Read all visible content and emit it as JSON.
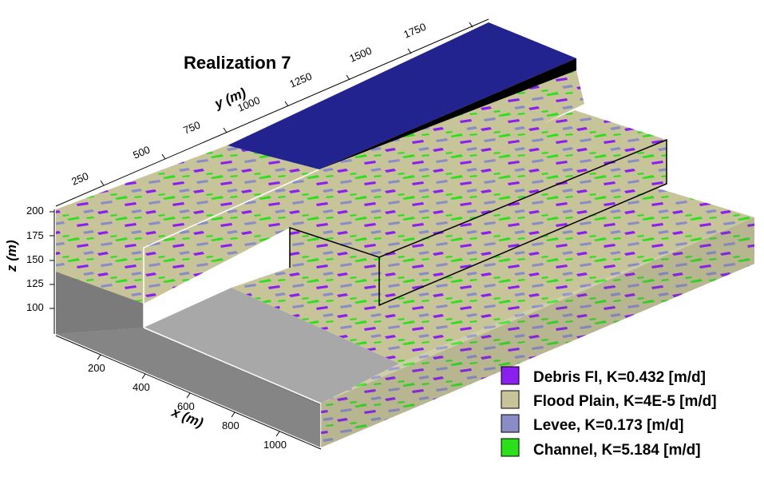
{
  "title": "Realization 7",
  "axes": {
    "x": {
      "label": "x (m)",
      "ticks": [
        "200",
        "400",
        "600",
        "800",
        "1000"
      ]
    },
    "y": {
      "label": "y (m)",
      "ticks": [
        "250",
        "500",
        "750",
        "1000",
        "1250",
        "1500",
        "1750"
      ]
    },
    "z": {
      "label": "z (m)",
      "ticks": [
        "200",
        "175",
        "150",
        "125",
        "100"
      ]
    }
  },
  "legend": [
    {
      "label": "Debris Fl, K=0.432 [m/d]",
      "color": "#8b1ff0"
    },
    {
      "label": "Flood Plain, K=4E-5 [m/d]",
      "color": "#c8c49a"
    },
    {
      "label": "Levee, K=0.173 [m/d]",
      "color": "#8a8cc8"
    },
    {
      "label": "Channel, K=5.184 [m/d]",
      "color": "#2be01a"
    }
  ],
  "colors": {
    "flood_plain": "#c8c49a",
    "debris": "#8b1ff0",
    "levee": "#8a8cc8",
    "channel": "#2be01a",
    "top_surface": "#23238f",
    "base_front": "#7b7b7b",
    "base_side": "#5a5a5a",
    "base_floor": "#a8a8a8"
  }
}
